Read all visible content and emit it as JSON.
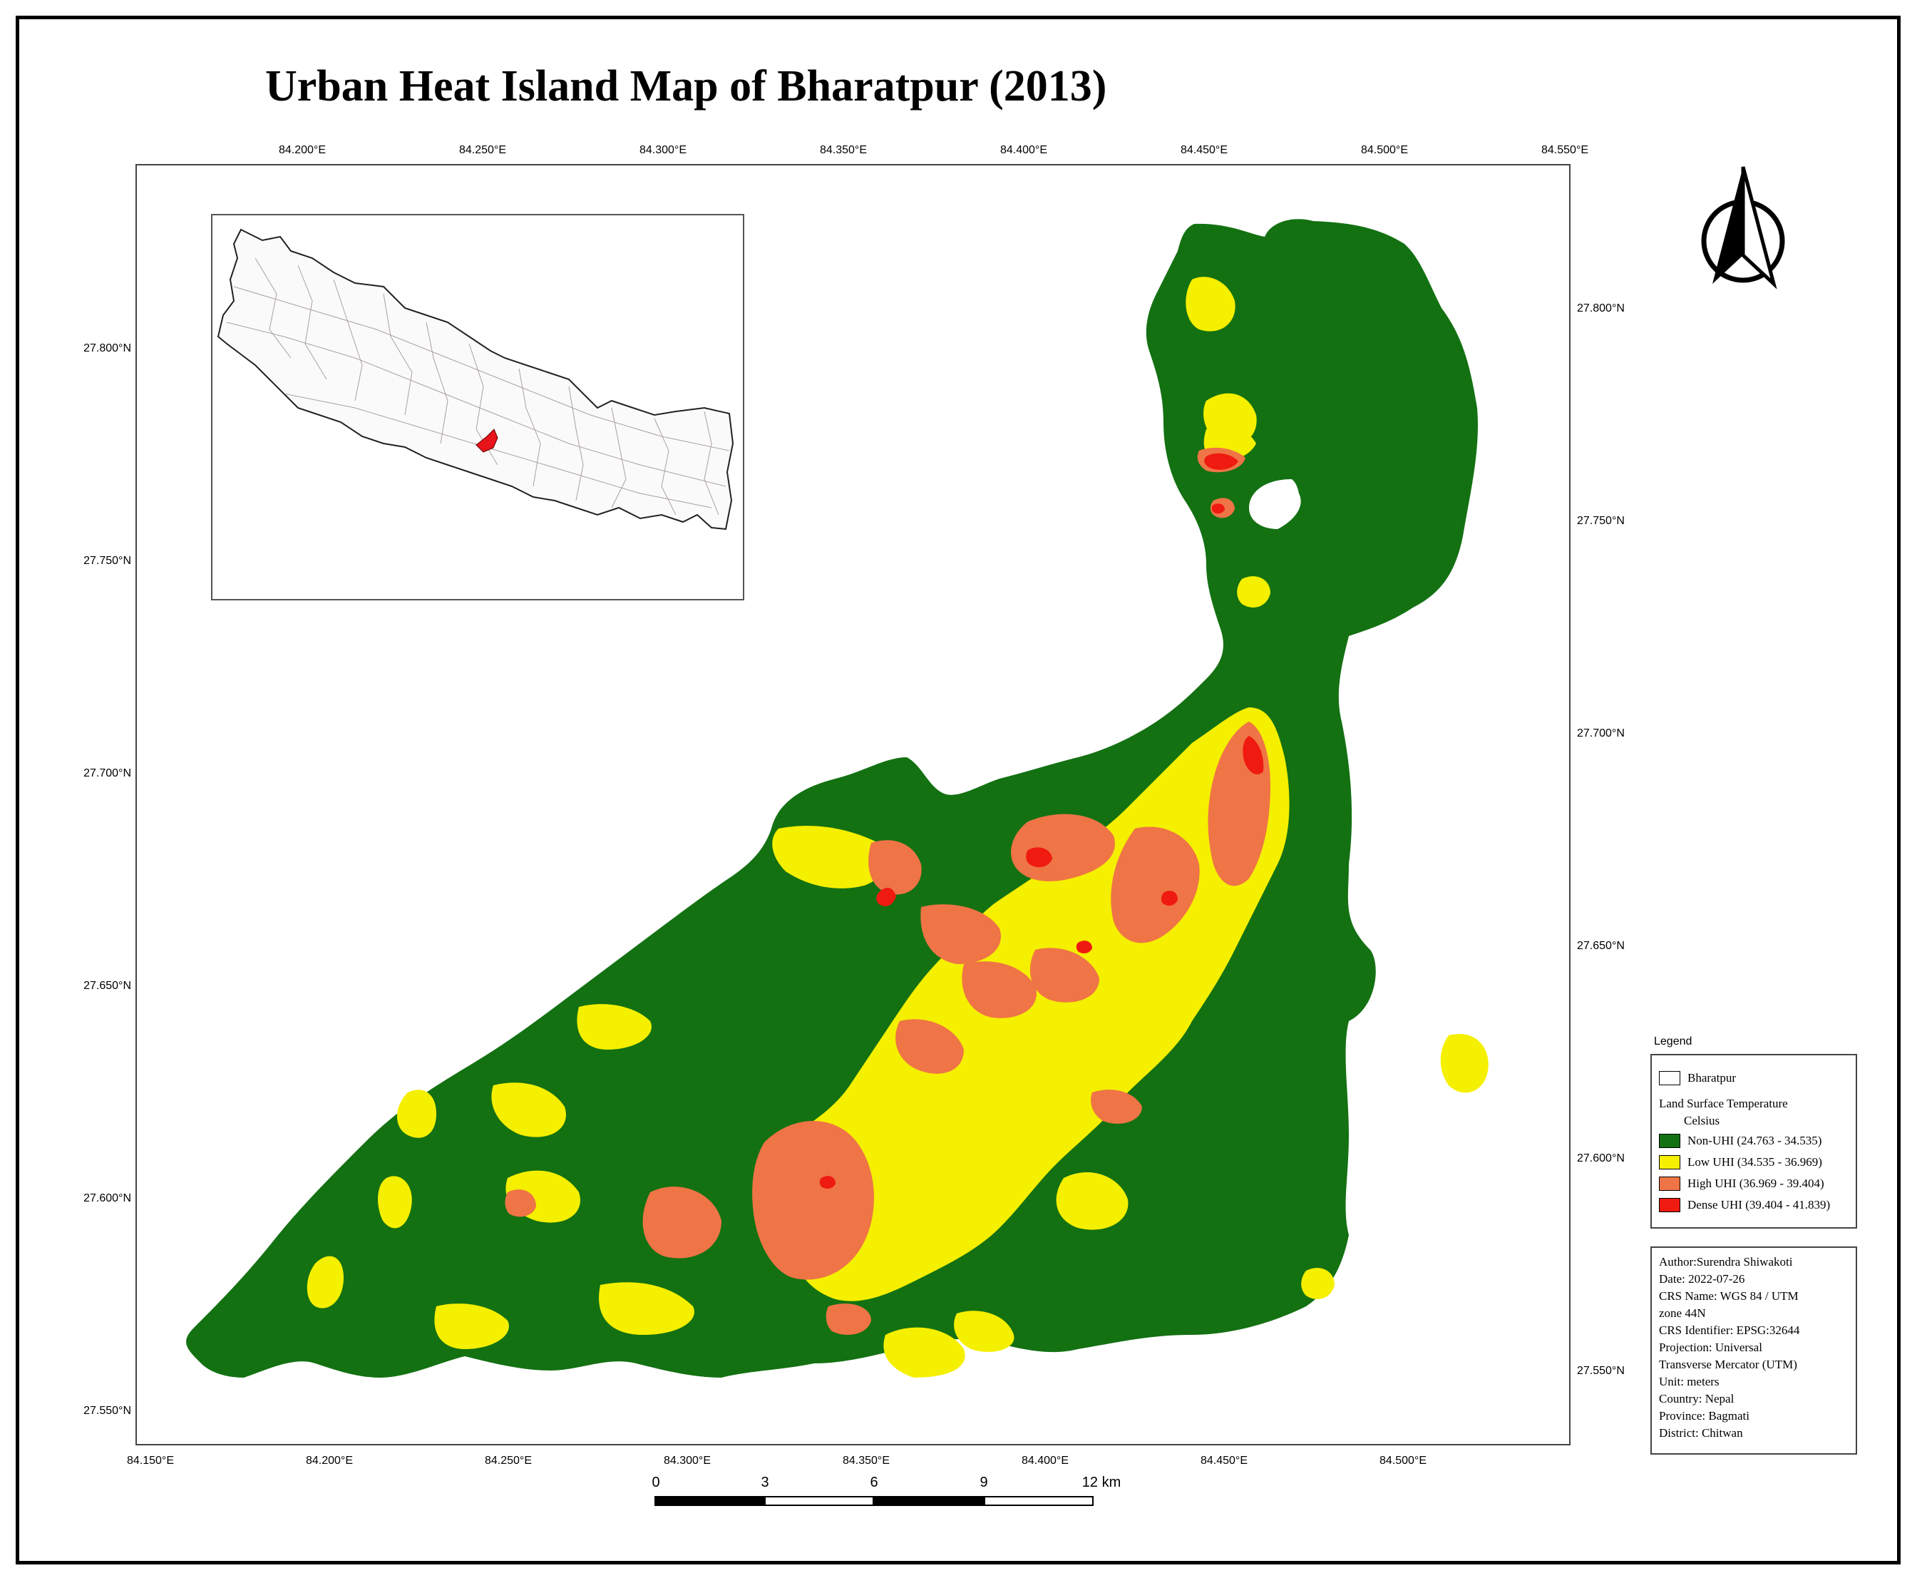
{
  "title": "Urban Heat Island Map of Bharatpur (2013)",
  "axes": {
    "top_labels": [
      "84.200°E",
      "84.250°E",
      "84.300°E",
      "84.350°E",
      "84.400°E",
      "84.450°E",
      "84.500°E",
      "84.550°E"
    ],
    "bottom_labels": [
      "84.150°E",
      "84.200°E",
      "84.250°E",
      "84.300°E",
      "84.350°E",
      "84.400°E",
      "84.450°E",
      "84.500°E"
    ],
    "left_labels": [
      "27.800°N",
      "27.750°N",
      "27.700°N",
      "27.650°N",
      "27.600°N",
      "27.550°N"
    ],
    "right_labels": [
      "27.800°N",
      "27.750°N",
      "27.700°N",
      "27.650°N",
      "27.600°N",
      "27.550°N"
    ]
  },
  "legend": {
    "caption": "Legend",
    "boundary_label": "Bharatpur",
    "lst_title": "Land Surface Temperature",
    "unit": "Celsius",
    "classes": [
      {
        "label": "Non-UHI (24.763 - 34.535)",
        "color": "#137112"
      },
      {
        "label": "Low UHI (34.535 - 36.969)",
        "color": "#f5ef00"
      },
      {
        "label": "High UHI (36.969 - 39.404)",
        "color": "#ef7446"
      },
      {
        "label": "Dense UHI (39.404 - 41.839)",
        "color": "#ef1a10"
      }
    ]
  },
  "info": [
    "Author:Surendra Shiwakoti",
    "Date: 2022-07-26",
    "CRS Name: WGS 84 / UTM",
    "zone 44N",
    "CRS Identifier: EPSG:32644",
    "Projection: Universal",
    "Transverse Mercator (UTM)",
    "Unit: meters",
    "Country: Nepal",
    "Province: Bagmati",
    "District: Chitwan"
  ],
  "scale_bar": {
    "labels": [
      "0",
      "3",
      "6",
      "9",
      "12 km"
    ]
  },
  "colors": {
    "non_uhi": "#137112",
    "low_uhi": "#f5ef00",
    "high_uhi": "#ef7446",
    "dense_uhi": "#ef1a10",
    "highlight_region": "#e8141b"
  },
  "icons": {
    "north_arrow": "north-arrow-icon"
  }
}
